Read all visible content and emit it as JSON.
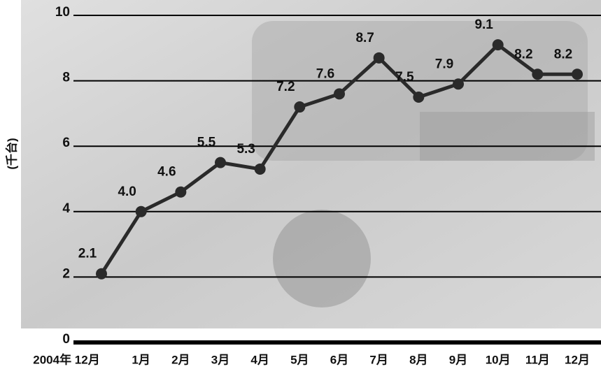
{
  "chart_data": {
    "type": "line",
    "ylabel": "(千台)",
    "categories": [
      "2004年 12月",
      "1月",
      "2月",
      "3月",
      "4月",
      "5月",
      "6月",
      "7月",
      "8月",
      "9月",
      "10月",
      "11月",
      "12月"
    ],
    "series": [
      {
        "color": "#2a2a2a",
        "values": [
          2.1,
          4.0,
          4.6,
          5.5,
          5.3,
          7.2,
          7.6,
          8.7,
          7.5,
          7.9,
          9.1,
          8.2,
          8.2
        ],
        "value_labels": [
          "2.1",
          "4.0",
          "4.6",
          "5.5",
          "5.3",
          "7.2",
          "7.6",
          "8.7",
          "7.5",
          "7.9",
          "9.1",
          "8.2",
          "8.2"
        ]
      }
    ],
    "ylim": [
      0,
      10
    ],
    "yticks": [
      0,
      2,
      4,
      6,
      8,
      10
    ],
    "grid": true
  }
}
